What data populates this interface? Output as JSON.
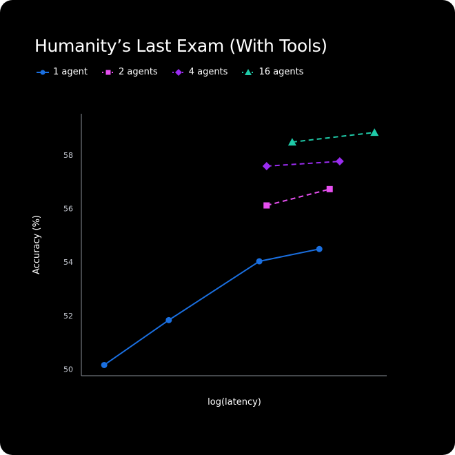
{
  "chart_data": {
    "type": "line",
    "title": "Humanity’s Last Exam (With Tools)",
    "xlabel": "log(latency)",
    "ylabel": "Accuracy (%)",
    "xlim": [
      0,
      10
    ],
    "ylim": [
      49.75,
      59.55
    ],
    "yticks": [
      50,
      52,
      54,
      56,
      58
    ],
    "xticks": [],
    "grid": false,
    "legend_position": "top-left",
    "series": [
      {
        "name": "1 agent",
        "color": "#1a6fe0",
        "marker": "circle",
        "dash": false,
        "x": [
          0.75,
          2.87,
          5.84,
          7.81
        ],
        "y": [
          50.15,
          51.83,
          54.03,
          54.49
        ]
      },
      {
        "name": "2 agents",
        "color": "#e64ff0",
        "marker": "square",
        "dash": true,
        "x": [
          6.08,
          8.15
        ],
        "y": [
          56.12,
          56.73
        ]
      },
      {
        "name": "4 agents",
        "color": "#9a2cf0",
        "marker": "diamond",
        "dash": true,
        "x": [
          6.08,
          8.48
        ],
        "y": [
          57.59,
          57.77
        ]
      },
      {
        "name": "16 agents",
        "color": "#1fcaa8",
        "marker": "triangle",
        "dash": true,
        "x": [
          6.92,
          9.62
        ],
        "y": [
          58.49,
          58.85
        ]
      }
    ]
  }
}
